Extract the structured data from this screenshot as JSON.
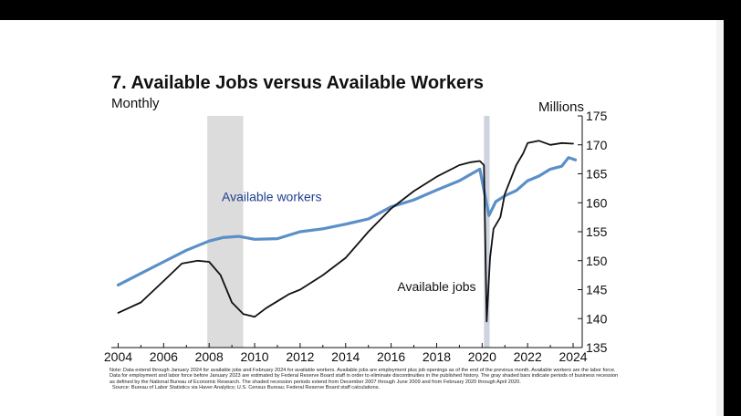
{
  "title": "7. Available Jobs versus Available Workers",
  "subtitle": "Monthly",
  "unit": "Millions",
  "note": "Note: Data extend through January 2024 for available jobs and February 2024 for available workers. Available jobs are employment plus job openings as of the end of the previous month. Available workers are the labor force. Data for employment and labor force before January 2023 are estimated by Federal Reserve Board staff in order to eliminate discontinuities in the published history. The gray shaded bars indicate periods of business recession as defined by the National Bureau of Economic Research. The shaded recession periods extend from December 2007 through June 2009 and from February 2020 through April 2020.",
  "source": "Source: Bureau of Labor Statistics via Haver Analytics; U.S. Census Bureau; Federal Reserve Board staff calculations.",
  "chart_data": {
    "type": "line",
    "title": "7. Available Jobs versus Available Workers",
    "subtitle": "Monthly",
    "ylabel": "Millions",
    "y_axis_side": "right",
    "ylim": [
      135,
      175
    ],
    "xlim": [
      2003.7,
      2024.4
    ],
    "x_ticks": [
      2004,
      2006,
      2008,
      2010,
      2012,
      2014,
      2016,
      2018,
      2020,
      2022,
      2024
    ],
    "y_ticks": [
      135,
      140,
      145,
      150,
      155,
      160,
      165,
      170,
      175
    ],
    "grid": false,
    "legend": "inline labels",
    "recessions": [
      {
        "start": 2007.92,
        "end": 2009.5
      },
      {
        "start": 2020.08,
        "end": 2020.33
      }
    ],
    "series": [
      {
        "name": "Available workers",
        "color": "#5b8fc7",
        "label_color": "#1f3f8f",
        "x": [
          2004.0,
          2005.0,
          2006.0,
          2007.0,
          2008.0,
          2008.6,
          2009.3,
          2010.0,
          2011.0,
          2012.0,
          2013.0,
          2014.0,
          2015.0,
          2016.0,
          2017.0,
          2018.0,
          2019.0,
          2019.9,
          2020.3,
          2020.6,
          2021.0,
          2021.5,
          2022.0,
          2022.5,
          2023.0,
          2023.5,
          2023.8,
          2024.1
        ],
        "values": [
          145.8,
          147.8,
          149.8,
          151.8,
          153.4,
          154.0,
          154.2,
          153.7,
          153.8,
          155.0,
          155.5,
          156.3,
          157.2,
          159.3,
          160.5,
          162.2,
          163.8,
          165.8,
          157.8,
          160.2,
          161.2,
          162.1,
          163.8,
          164.6,
          165.8,
          166.3,
          167.8,
          167.4
        ]
      },
      {
        "name": "Available jobs",
        "color": "#111111",
        "label_color": "#111111",
        "x": [
          2004.0,
          2005.0,
          2006.0,
          2006.8,
          2007.5,
          2008.0,
          2008.5,
          2009.0,
          2009.5,
          2010.0,
          2010.5,
          2011.0,
          2011.5,
          2012.0,
          2013.0,
          2014.0,
          2015.0,
          2016.0,
          2017.0,
          2018.0,
          2019.0,
          2019.5,
          2019.9,
          2020.08,
          2020.2,
          2020.35,
          2020.5,
          2020.8,
          2021.0,
          2021.5,
          2021.8,
          2022.0,
          2022.5,
          2023.0,
          2023.5,
          2024.0
        ],
        "values": [
          141.0,
          142.8,
          146.5,
          149.5,
          150.0,
          149.8,
          147.5,
          142.8,
          140.8,
          140.3,
          141.8,
          143.0,
          144.2,
          145.0,
          147.5,
          150.5,
          155.0,
          159.0,
          162.0,
          164.5,
          166.5,
          167.0,
          167.2,
          166.5,
          139.5,
          150.5,
          155.5,
          157.5,
          161.5,
          166.5,
          168.5,
          170.3,
          170.7,
          170.0,
          170.3,
          170.2
        ]
      }
    ]
  }
}
